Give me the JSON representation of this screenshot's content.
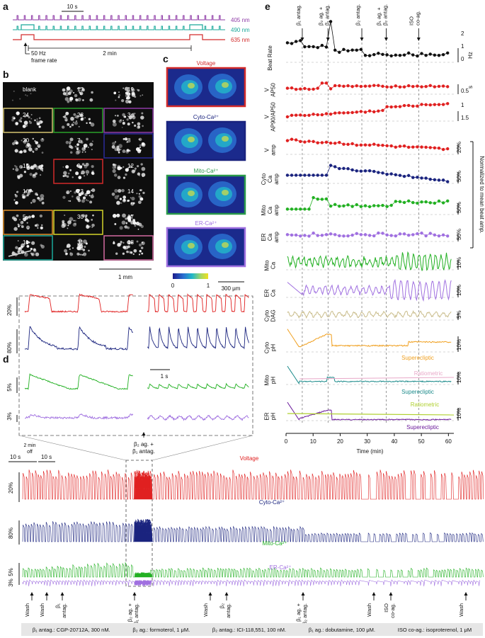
{
  "panels": {
    "a": "a",
    "b": "b",
    "c": "c",
    "d": "d",
    "e": "e"
  },
  "panel_a": {
    "scale_label": "10 s",
    "wavelengths": [
      "405 nm",
      "490 nm",
      "635 nm"
    ],
    "colors": [
      "#8e3aa6",
      "#1aa89a",
      "#d22a2a"
    ],
    "frame_rate": "50 Hz\nframe rate",
    "frame_rate_lines": [
      "50 Hz",
      "frame rate"
    ],
    "interval": "2 min"
  },
  "panel_b": {
    "tiles": [
      {
        "label": "blank",
        "border": ""
      },
      {
        "label": "13",
        "border": ""
      },
      {
        "label": "19",
        "border": ""
      },
      {
        "label": "24",
        "border": "#d4c470"
      },
      {
        "label": "28",
        "border": "#2aa02a"
      },
      {
        "label": "3",
        "border": "#8e3aa6"
      },
      {
        "label": "20",
        "border": ""
      },
      {
        "label": "7",
        "border": ""
      },
      {
        "label": "8",
        "border": "#2a2a9a"
      },
      {
        "label": "15",
        "border": ""
      },
      {
        "label": "9",
        "border": "#d22a2a"
      },
      {
        "label": "12",
        "border": ""
      },
      {
        "label": "16",
        "border": ""
      },
      {
        "label": "23",
        "border": ""
      },
      {
        "label": "14",
        "border": ""
      },
      {
        "label": "5",
        "border": "#e0902a"
      },
      {
        "label": "30",
        "border": "#d4d42a"
      },
      {
        "label": "17",
        "border": ""
      },
      {
        "label": "11",
        "border": "#1aa89a"
      },
      {
        "label": "31",
        "border": ""
      },
      {
        "label": "18",
        "border": "#d46aa0"
      }
    ],
    "scale": "1 mm"
  },
  "panel_c": {
    "images": [
      {
        "title": "Voltage",
        "color": "#d22a2a"
      },
      {
        "title": "Cyto-Ca²⁺",
        "color": "#1a237e"
      },
      {
        "title": "Mito-Ca²⁺",
        "color": "#2a9a4a"
      },
      {
        "title": "ER-Ca²⁺",
        "color": "#a070e0"
      }
    ],
    "colorbar_min": "0",
    "colorbar_max": "1",
    "scale": "300 μm"
  },
  "panel_d": {
    "inset_scales": [
      "20%",
      "80%",
      "5%",
      "3%"
    ],
    "inset_time": "1 s",
    "inset_annotation_lines": [
      "β₂ ag. +",
      "β₁ antag."
    ],
    "break_labels": {
      "left": "10 s",
      "mid": "2 min\noff",
      "right": "10 s"
    },
    "break_mid_lines": [
      "2 min",
      "off"
    ],
    "traces": [
      {
        "name": "Voltage",
        "scale": "20%",
        "color": "#e02020"
      },
      {
        "name": "Cyto-Ca²⁺",
        "scale": "80%",
        "color": "#1a237e"
      },
      {
        "name": "Mito-Ca²⁺",
        "scale": "5%",
        "color": "#22b022"
      },
      {
        "name": "ER-Ca²⁺",
        "scale": "3%",
        "color": "#a070e0"
      }
    ],
    "events": [
      {
        "label": "Wash",
        "lines": [
          "Wash"
        ]
      },
      {
        "label": "Wash",
        "lines": [
          "Wash"
        ]
      },
      {
        "label": "β₁ antag.",
        "lines": [
          "β₁",
          "antag."
        ]
      },
      {
        "label": "β₂ ag. + β₁ antag.",
        "lines": [
          "β₂ ag. +",
          "β₁ antag."
        ]
      },
      {
        "label": "Wash",
        "lines": [
          "Wash"
        ]
      },
      {
        "label": "β₂ antag.",
        "lines": [
          "β₂",
          "antag."
        ]
      },
      {
        "label": "β₁ ag. + β₂ antag.",
        "lines": [
          "β₁ ag. +",
          "β₂ antag."
        ]
      },
      {
        "label": "Wash",
        "lines": [
          "Wash"
        ]
      },
      {
        "label": "ISO co-ag.",
        "lines": [
          "ISO",
          "co-ag."
        ]
      },
      {
        "label": "Wash",
        "lines": [
          "Wash"
        ]
      }
    ]
  },
  "panel_e": {
    "top_events": [
      {
        "label": "β₁ antag.",
        "lines": [
          "β₁ antag."
        ],
        "t": 6
      },
      {
        "label": "β₂ ag. + β₁ antag.",
        "lines": [
          "β₂ ag. +",
          "β₁ antag."
        ],
        "t": 15.5
      },
      {
        "label": "β₂ antag.",
        "lines": [
          "β₂ antag."
        ],
        "t": 28
      },
      {
        "label": "β₁ ag. + β₂ antag.",
        "lines": [
          "β₁ ag. +",
          "β₂ antag."
        ],
        "t": 37
      },
      {
        "label": "ISO co-ag.",
        "lines": [
          "ISO",
          "co-ag."
        ],
        "t": 49
      }
    ],
    "rows": [
      {
        "label": "Beat Rate",
        "lines": [
          "Beat Rate"
        ],
        "color": "#111111",
        "ticks": [
          "0",
          "1",
          "2"
        ],
        "unit": "Hz"
      },
      {
        "label": "V AP50",
        "lines": [
          "V",
          "AP50"
        ],
        "color": "#e02020",
        "ticks": [
          "0.5"
        ],
        "unit": "s"
      },
      {
        "label": "V AP90/AP50",
        "lines": [
          "V",
          "AP90/AP50"
        ],
        "color": "#e02020",
        "ticks": [
          "1.5",
          "1"
        ],
        "unit": ""
      },
      {
        "label": "V amp",
        "lines": [
          "V",
          "amp"
        ],
        "color": "#e02020",
        "ticks": [
          "20%"
        ],
        "unit": ""
      },
      {
        "label": "Cyto Ca amp",
        "lines": [
          "Cyto",
          "Ca",
          "amp"
        ],
        "color": "#1a237e",
        "ticks": [
          "50%"
        ],
        "unit": ""
      },
      {
        "label": "Mito Ca amp",
        "lines": [
          "Mito",
          "Ca",
          "amp"
        ],
        "color": "#22b022",
        "ticks": [
          "50%"
        ],
        "unit": ""
      },
      {
        "label": "ER Ca amp",
        "lines": [
          "ER",
          "Ca",
          "amp"
        ],
        "color": "#a070e0",
        "ticks": [
          "50%"
        ],
        "unit": ""
      },
      {
        "label": "Mito Ca",
        "lines": [
          "Mito",
          "Ca"
        ],
        "color": "#22b022",
        "ticks": [
          "10%"
        ],
        "unit": ""
      },
      {
        "label": "ER Ca",
        "lines": [
          "ER",
          "Ca"
        ],
        "color": "#a070e0",
        "ticks": [
          "10%"
        ],
        "unit": ""
      },
      {
        "label": "Cyto DAG",
        "lines": [
          "Cyto",
          "DAG"
        ],
        "color": "#c9bc8a",
        "ticks": [
          "5%"
        ],
        "unit": ""
      },
      {
        "label": "Cyto pH",
        "lines": [
          "Cyto",
          "pH"
        ],
        "color": "#f0a020",
        "ticks": [
          "10%"
        ],
        "unit": ""
      },
      {
        "label": "Mito pH",
        "lines": [
          "Mito",
          "pH"
        ],
        "color": "#1a8a8a",
        "ticks": [
          "10%"
        ],
        "unit": ""
      },
      {
        "label": "ER pH",
        "lines": [
          "ER",
          "pH"
        ],
        "color": "#6a1a9a",
        "ticks": [
          "10%"
        ],
        "unit": ""
      }
    ],
    "normalized_note": "Normalized to mean beat amp.",
    "annotations": [
      {
        "text": "Superecliptic",
        "color": "#f0a020"
      },
      {
        "text": "Ratiometric",
        "color": "#e8a8c8"
      },
      {
        "text": "Superecliptic",
        "color": "#1a8a8a"
      },
      {
        "text": "Ratiometric",
        "color": "#b0d030"
      },
      {
        "text": "Superecliptic",
        "color": "#6a1a9a"
      }
    ],
    "x_ticks": [
      "0",
      "10",
      "20",
      "30",
      "40",
      "50",
      "60"
    ],
    "x_label": "Time (min)"
  },
  "legend_bar": [
    "β₁ antag.: CGP-20712A, 300 nM.",
    "β₂ ag.: formoterol, 1 μM.",
    "β₂ antag.: ICI-118,551, 100 nM.",
    "β₁ ag.: dobutamine, 100 μM.",
    "ISO co-ag.: isoproterenol, 1 μM"
  ]
}
